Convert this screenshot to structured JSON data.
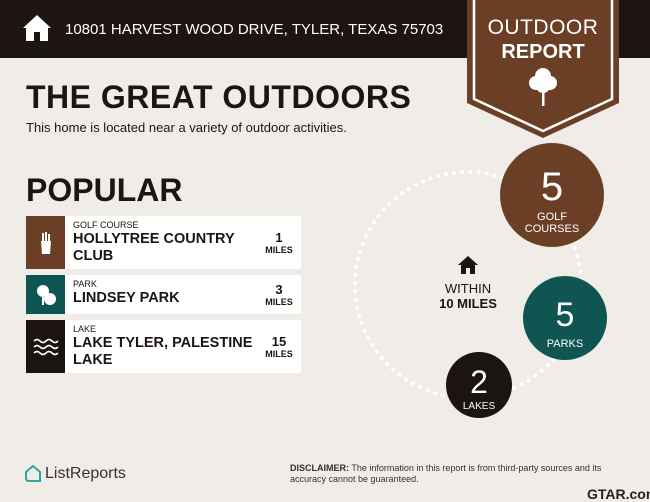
{
  "header": {
    "address": "10801 HARVEST WOOD DRIVE, TYLER, TEXAS 75703",
    "icon": "home-icon"
  },
  "badge": {
    "line1": "OUTDOOR",
    "line2": "REPORT",
    "icon": "tree-icon"
  },
  "intro": {
    "title": "THE GREAT OUTDOORS",
    "subtitle": "This home is located near a variety of outdoor activities."
  },
  "popular": {
    "heading": "POPULAR",
    "items": [
      {
        "category": "GOLF COURSE",
        "name": "HOLLYTREE COUNTRY CLUB",
        "distance": "1",
        "unit": "MILES",
        "color": "#6b3e26",
        "icon": "golf-bag-icon"
      },
      {
        "category": "PARK",
        "name": "LINDSEY PARK",
        "distance": "3",
        "unit": "MILES",
        "color": "#0f5552",
        "icon": "trees-icon"
      },
      {
        "category": "LAKE",
        "name": "LAKE TYLER, PALESTINE LAKE",
        "distance": "15",
        "unit": "MILES",
        "color": "#1c1410",
        "icon": "waves-icon"
      }
    ]
  },
  "summary": {
    "within_line1": "WITHIN",
    "within_line2": "10 MILES",
    "golf": {
      "count": "5",
      "label": "GOLF COURSES"
    },
    "parks": {
      "count": "5",
      "label": "PARKS"
    },
    "lakes": {
      "count": "2",
      "label": "LAKES"
    }
  },
  "footer": {
    "brand": "ListReports",
    "disclaimer_bold": "DISCLAIMER:",
    "disclaimer": " The information in this report is from third-party sources and its accuracy cannot be guaranteed.",
    "partner": "GTAR.com"
  },
  "colors": {
    "brown": "#6b3e26",
    "teal": "#0f5552",
    "dark": "#1c1410",
    "background": "#f0ece8"
  }
}
